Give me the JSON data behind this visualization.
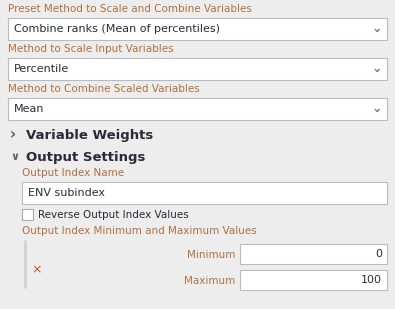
{
  "bg_color": "#ededee",
  "label_color": "#b07040",
  "text_color": "#2a2a3a",
  "dropdown_bg": "#ffffff",
  "dropdown_border": "#b8bcc0",
  "section_arrow_color": "#888888",
  "fields": [
    {
      "label": "Preset Method to Scale and Combine Variables",
      "value": "Combine ranks (Mean of percentiles)"
    },
    {
      "label": "Method to Scale Input Variables",
      "value": "Percentile"
    },
    {
      "label": "Method to Combine Scaled Variables",
      "value": "Mean"
    }
  ],
  "var_weights_label": "Variable Weights",
  "output_settings_label": "Output Settings",
  "output_index_name_label": "Output Index Name",
  "output_index_name_value": "ENV subindex",
  "checkbox_label": "Reverse Output Index Values",
  "minmax_label": "Output Index Minimum and Maximum Values",
  "min_label": "Minimum",
  "max_label": "Maximum",
  "min_value": "0",
  "max_value": "100",
  "x_mark_color": "#c05030",
  "vertical_bar_color": "#d0d0d0",
  "chevron_color": "#606060",
  "collapse_arrow_color": "#606060",
  "fig_width": 3.95,
  "fig_height": 3.09,
  "dpi": 100
}
